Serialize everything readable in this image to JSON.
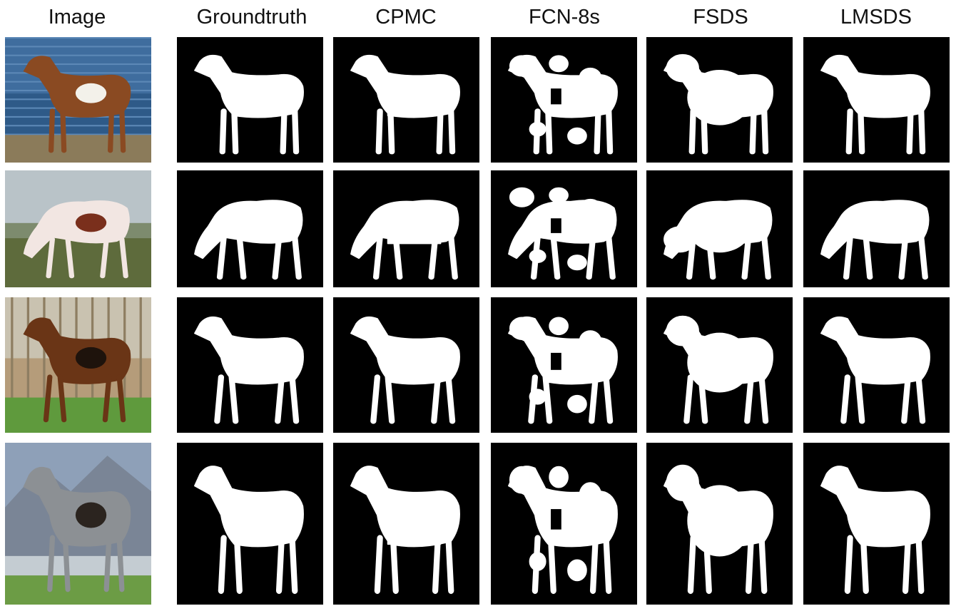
{
  "figure": {
    "column_headers": [
      "Image",
      "Groundtruth",
      "CPMC",
      "FCN-8s",
      "FSDS",
      "LMSDS"
    ],
    "rows": [
      {
        "subject": "pinto horse in front of blue wall"
      },
      {
        "subject": "grazing pinto horse on grass"
      },
      {
        "subject": "bay arabian horse on lawn"
      },
      {
        "subject": "grey arabian horse in front of mountains"
      }
    ],
    "colors": {
      "mask_background": "#000000",
      "mask_foreground": "#ffffff"
    }
  }
}
